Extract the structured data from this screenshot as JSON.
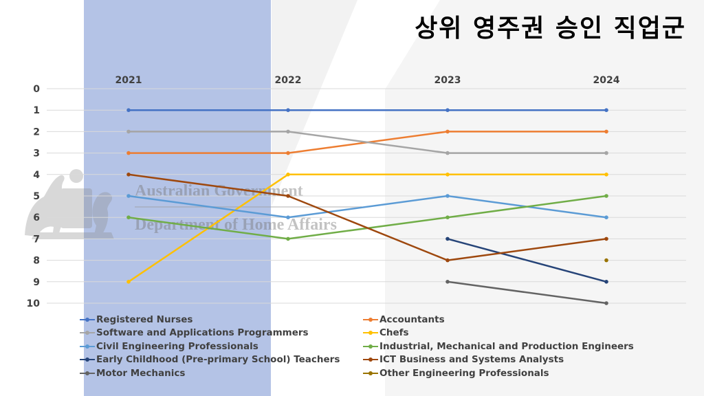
{
  "title": "상위 영주권 승인 직업군",
  "watermark": {
    "line1": "Australian Government",
    "line2": "Department of Home Affairs"
  },
  "colors": {
    "highlight_band": "#b4c3e6",
    "grid": "#d9d9d9"
  },
  "chart_data": {
    "type": "line",
    "title": "상위 영주권 승인 직업군",
    "x": [
      "2021",
      "2022",
      "2023",
      "2024"
    ],
    "y_tick_labels": [
      "0",
      "1",
      "2",
      "3",
      "4",
      "5",
      "6",
      "7",
      "8",
      "9",
      "10"
    ],
    "ylim": [
      0,
      10
    ],
    "y_inverted": true,
    "grid": true,
    "legend_position": "bottom",
    "highlighted_category": "2021",
    "series": [
      {
        "name": "Registered Nurses",
        "color": "#4472c4",
        "values": [
          1,
          1,
          1,
          1
        ]
      },
      {
        "name": "Accountants",
        "color": "#ed7d31",
        "values": [
          3,
          3,
          2,
          2
        ]
      },
      {
        "name": "Software and Applications Programmers",
        "color": "#a5a5a5",
        "values": [
          2,
          2,
          3,
          3
        ]
      },
      {
        "name": "Chefs",
        "color": "#ffc000",
        "values": [
          9,
          4,
          4,
          4
        ]
      },
      {
        "name": "Civil Engineering Professionals",
        "color": "#5b9bd5",
        "values": [
          5,
          6,
          5,
          6
        ]
      },
      {
        "name": "Industrial, Mechanical and Production Engineers",
        "color": "#70ad47",
        "values": [
          6,
          7,
          6,
          5
        ]
      },
      {
        "name": "Early Childhood (Pre-primary School) Teachers",
        "color": "#264478",
        "values": [
          null,
          null,
          7,
          9
        ]
      },
      {
        "name": "ICT Business and Systems Analysts",
        "color": "#9e480e",
        "values": [
          4,
          5,
          8,
          7
        ]
      },
      {
        "name": "Motor Mechanics",
        "color": "#636363",
        "values": [
          null,
          null,
          9,
          10
        ]
      },
      {
        "name": "Other Engineering Professionals",
        "color": "#997300",
        "values": [
          null,
          null,
          null,
          8
        ]
      }
    ]
  }
}
